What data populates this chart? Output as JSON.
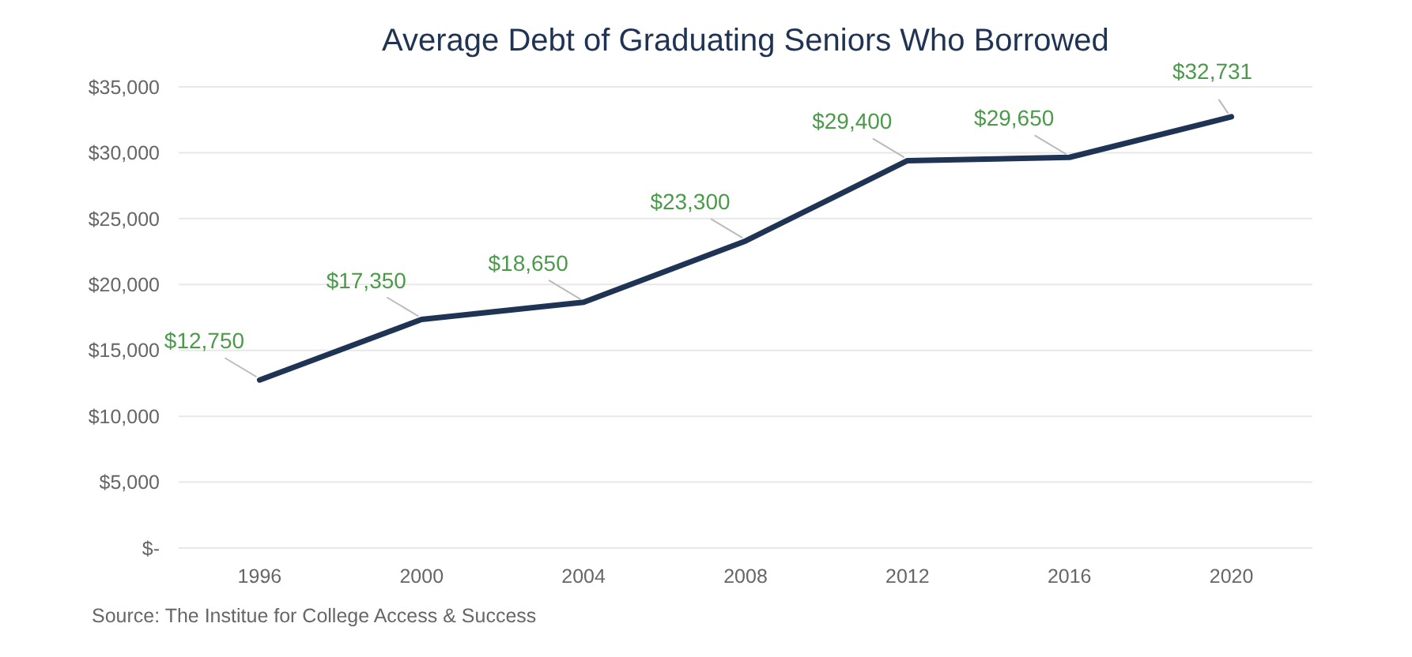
{
  "chart_data": {
    "type": "line",
    "title": "Average Debt of Graduating Seniors Who Borrowed",
    "categories": [
      "1996",
      "2000",
      "2004",
      "2008",
      "2012",
      "2016",
      "2020"
    ],
    "series": [
      {
        "color": "#1f3354",
        "values": [
          12750,
          17350,
          18650,
          23300,
          29400,
          29650,
          32731
        ],
        "value_labels": [
          "$12,750",
          "$17,350",
          "$18,650",
          "$23,300",
          "$29,400",
          "$29,650",
          "$32,731"
        ]
      }
    ],
    "ylim": [
      0,
      35000
    ],
    "yticks": [
      {
        "value": 0,
        "label": "$-"
      },
      {
        "value": 5000,
        "label": "$5,000"
      },
      {
        "value": 10000,
        "label": "$10,000"
      },
      {
        "value": 15000,
        "label": "$15,000"
      },
      {
        "value": 20000,
        "label": "$20,000"
      },
      {
        "value": 25000,
        "label": "$25,000"
      },
      {
        "value": 30000,
        "label": "$30,000"
      },
      {
        "value": 35000,
        "label": "$35,000"
      }
    ],
    "grid": "y",
    "marker": "none",
    "line_style": "solid",
    "annotations": [
      "Source: The Institue for College Access & Success"
    ]
  }
}
